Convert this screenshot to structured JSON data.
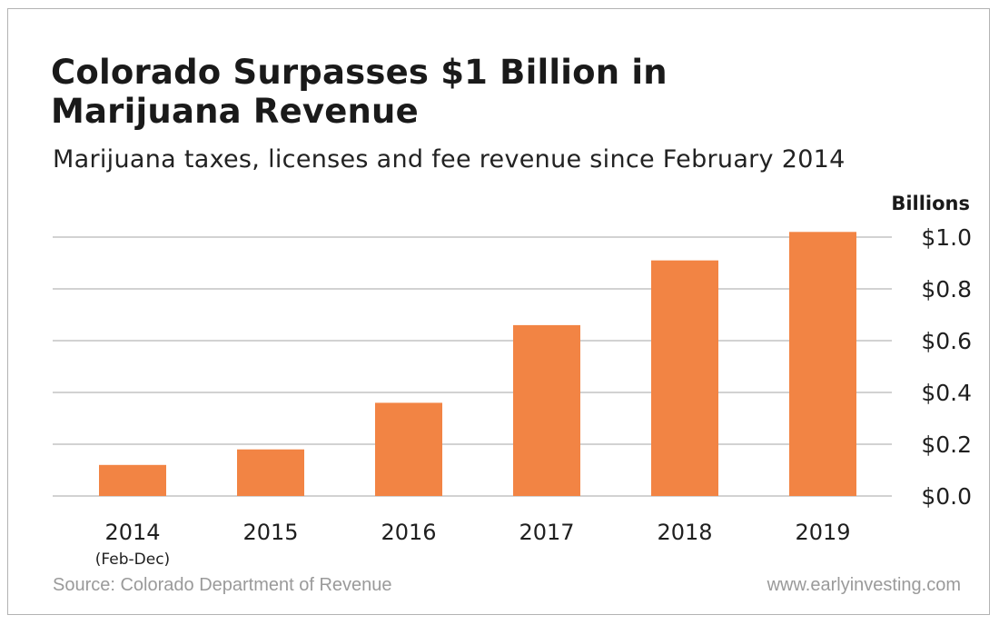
{
  "chart_data": {
    "type": "bar",
    "title": "Colorado Surpasses $1 Billion in Marijuana Revenue",
    "subtitle": "Marijuana taxes, licenses and fee revenue since February 2014",
    "ylabel": "Billions",
    "xlabel": "",
    "categories": [
      "2014",
      "2015",
      "2016",
      "2017",
      "2018",
      "2019"
    ],
    "category_sublabels": [
      "(Feb-Dec)",
      "",
      "",
      "",
      "",
      ""
    ],
    "values": [
      0.12,
      0.18,
      0.36,
      0.66,
      0.91,
      1.02
    ],
    "ylim": [
      0,
      1.0
    ],
    "yticks": [
      0.0,
      0.2,
      0.4,
      0.6,
      0.8,
      1.0
    ],
    "ytick_labels": [
      "$0.0",
      "$0.2",
      "$0.4",
      "$0.6",
      "$0.8",
      "$1.0"
    ],
    "y_axis_side": "right",
    "grid": true,
    "legend": "none",
    "bar_color": "#f28444",
    "grid_color": "#c4c4c4",
    "source": "Source: Colorado Department of Revenue",
    "website": "www.earlyinvesting.com"
  }
}
